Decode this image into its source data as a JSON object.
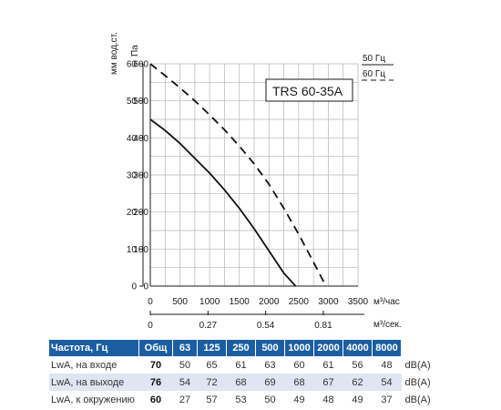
{
  "chart_data": {
    "type": "line",
    "model": "TRS 60-35A",
    "ylabel_left": "мм вод.ст.",
    "ylabel_right": "Па",
    "xlabel_top": "м³/час",
    "xlabel_bottom": "м³/сек.",
    "x_ticks_top": [
      "0",
      "500",
      "1000",
      "1500",
      "2000",
      "2500",
      "3000",
      "3500"
    ],
    "x_ticks_bottom": [
      "0",
      "0.27",
      "0.54",
      "0.81"
    ],
    "y_ticks_mm": [
      "0",
      "10",
      "20",
      "30",
      "40",
      "50",
      "60"
    ],
    "y_ticks_pa": [
      "0",
      "100",
      "200",
      "300",
      "400",
      "500",
      "600"
    ],
    "xlim": [
      0,
      3500
    ],
    "ylim": [
      0,
      600
    ],
    "grid": true,
    "legend": [
      {
        "label": "50 Гц",
        "style": "solid"
      },
      {
        "label": "60 Гц",
        "style": "dashed"
      }
    ],
    "series": [
      {
        "name": "50 Гц",
        "style": "solid",
        "x": [
          0,
          250,
          500,
          750,
          1000,
          1250,
          1500,
          1750,
          2000,
          2250,
          2450
        ],
        "y": [
          450,
          420,
          385,
          345,
          305,
          260,
          210,
          155,
          95,
          35,
          0
        ]
      },
      {
        "name": "60 Гц",
        "style": "dashed",
        "x": [
          0,
          250,
          500,
          750,
          1000,
          1250,
          1500,
          1750,
          2000,
          2250,
          2500,
          2750,
          2960
        ],
        "y": [
          600,
          568,
          535,
          500,
          462,
          422,
          378,
          330,
          275,
          210,
          140,
          65,
          0
        ]
      }
    ]
  },
  "table": {
    "header": [
      "Частота, Гц",
      "Общ",
      "63",
      "125",
      "250",
      "500",
      "1000",
      "2000",
      "4000",
      "8000"
    ],
    "rows": [
      {
        "label": "LwA, на входе",
        "total": "70",
        "values": [
          "50",
          "65",
          "61",
          "63",
          "60",
          "61",
          "56",
          "48"
        ],
        "unit": "dB(A)"
      },
      {
        "label": "LwA, на выходе",
        "total": "76",
        "values": [
          "54",
          "72",
          "68",
          "69",
          "68",
          "67",
          "62",
          "54"
        ],
        "unit": "dB(A)"
      },
      {
        "label": "LwA, к окружению",
        "total": "60",
        "values": [
          "27",
          "57",
          "53",
          "50",
          "49",
          "48",
          "49",
          "37"
        ],
        "unit": "dB(A)"
      }
    ]
  }
}
